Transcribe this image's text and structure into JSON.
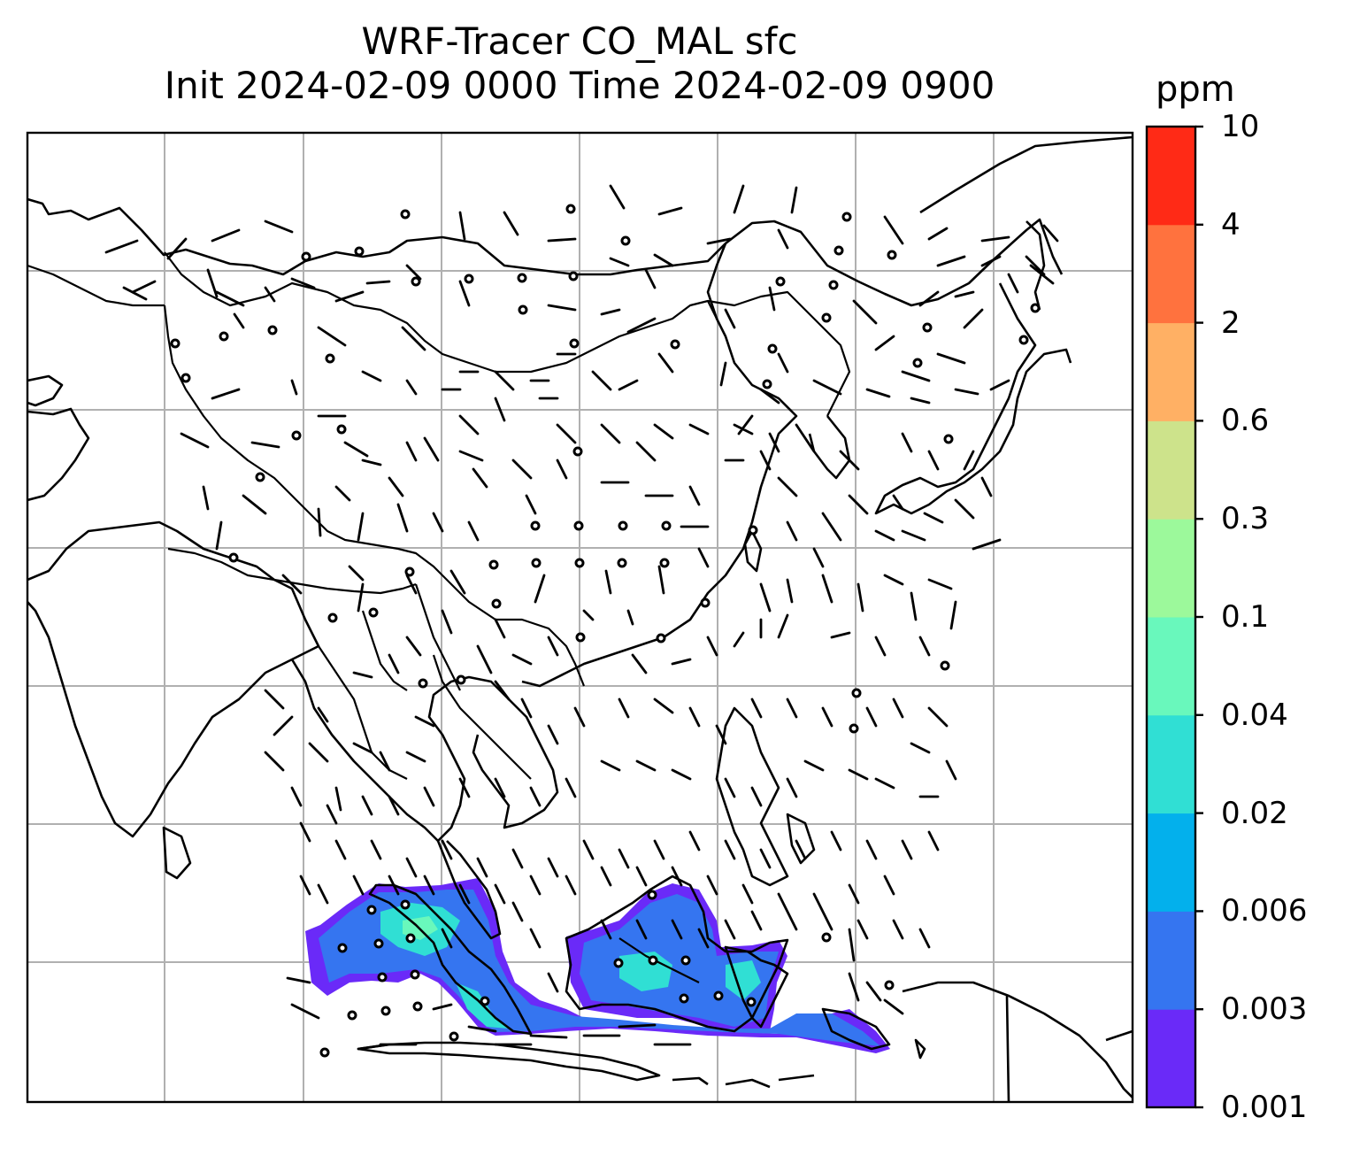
{
  "title": {
    "line1": "WRF-Tracer CO_MAL sfc",
    "line2": "Init 2024-02-09 0000 Time 2024-02-09 0900"
  },
  "colorbar": {
    "units": "ppm",
    "levels": [
      "0.001",
      "0.003",
      "0.006",
      "0.02",
      "0.04",
      "0.1",
      "0.3",
      "0.6",
      "2",
      "4",
      "10"
    ],
    "colors": [
      "#6a2af8",
      "#3575f0",
      "#03b0ec",
      "#30dfd4",
      "#69f8bc",
      "#9cf99b",
      "#cde38b",
      "#ffb064",
      "#ff723e",
      "#ff2a16"
    ]
  },
  "map": {
    "gridlines": true,
    "features": [
      "coastlines",
      "country-borders",
      "wind-barbs",
      "tracer-concentration-fill"
    ]
  }
}
